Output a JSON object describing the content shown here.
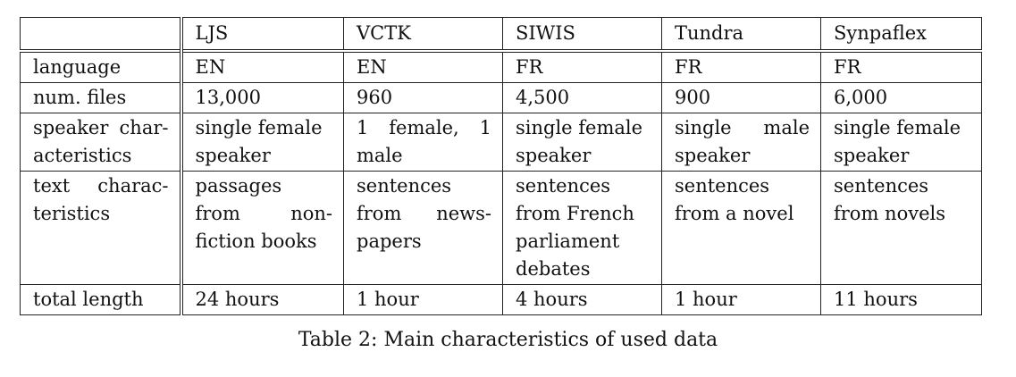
{
  "table": {
    "columns": [
      "",
      "LJS",
      "VCTK",
      "SIWIS",
      "Tundra",
      "Synpaflex"
    ],
    "rows": [
      {
        "label": [
          "language"
        ],
        "cells": [
          [
            "EN"
          ],
          [
            "EN"
          ],
          [
            "FR"
          ],
          [
            "FR"
          ],
          [
            "FR"
          ]
        ]
      },
      {
        "label": [
          "num. files"
        ],
        "cells": [
          [
            "13,000"
          ],
          [
            "960"
          ],
          [
            "4,500"
          ],
          [
            "900"
          ],
          [
            "6,000"
          ]
        ]
      },
      {
        "label": [
          "speaker char-",
          "acteristics"
        ],
        "cells": [
          [
            "single female",
            "speaker"
          ],
          [
            "1 female, 1",
            "male"
          ],
          [
            "single female",
            "speaker"
          ],
          [
            "single male",
            "speaker"
          ],
          [
            "single female",
            "speaker"
          ]
        ]
      },
      {
        "label": [
          "text charac-",
          "teristics"
        ],
        "cells": [
          [
            "passages",
            "from non-",
            "fiction books"
          ],
          [
            "sentences",
            "from news-",
            "papers"
          ],
          [
            "sentences",
            "from French",
            "parliament",
            "debates"
          ],
          [
            "sentences",
            "from a novel"
          ],
          [
            "sentences",
            "from novels"
          ]
        ]
      },
      {
        "label": [
          "total length"
        ],
        "cells": [
          [
            "24 hours"
          ],
          [
            "1 hour"
          ],
          [
            "4 hours"
          ],
          [
            "1 hour"
          ],
          [
            "11 hours"
          ]
        ]
      }
    ]
  },
  "caption": "Table 2: Main characteristics of used data"
}
